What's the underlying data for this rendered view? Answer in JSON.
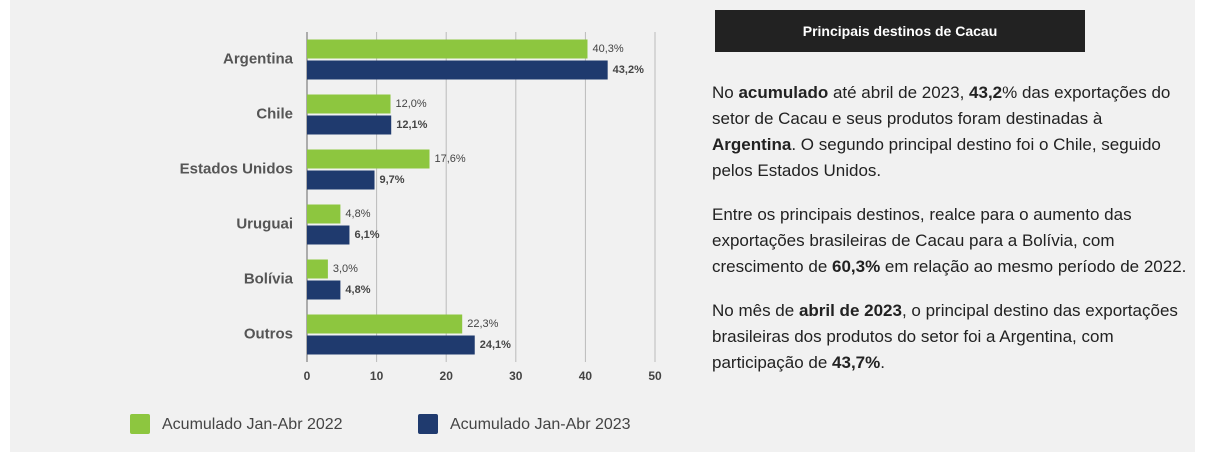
{
  "chart_data": {
    "type": "barh",
    "categories": [
      "Argentina",
      "Chile",
      "Estados Unidos",
      "Uruguai",
      "Bolívia",
      "Outros"
    ],
    "series": [
      {
        "name": "Acumulado Jan-Abr 2022",
        "color": "#8dc63f",
        "values": [
          40.3,
          12.0,
          17.6,
          4.8,
          3.0,
          22.3
        ],
        "value_labels": [
          "40,3%",
          "12,0%",
          "17,6%",
          "4,8%",
          "3,0%",
          "22,3%"
        ]
      },
      {
        "name": "Acumulado Jan-Abr 2023",
        "color": "#1f3a6e",
        "values": [
          43.2,
          12.1,
          9.7,
          6.1,
          4.8,
          24.1
        ],
        "value_labels": [
          "43,2%",
          "12,1%",
          "9,7%",
          "6,1%",
          "4,8%",
          "24,1%"
        ]
      }
    ],
    "xlim": [
      0,
      50
    ],
    "xticks": [
      0,
      10,
      20,
      30,
      40,
      50
    ],
    "grid": true,
    "legend": "bottom"
  },
  "panel": {
    "title": "Principais destinos de Cacau",
    "paragraphs": [
      [
        {
          "text": "No "
        },
        {
          "text": "acumulado",
          "bold": true
        },
        {
          "text": " até abril de 2023, "
        },
        {
          "text": "43,2",
          "bold": true
        },
        {
          "text": "% das exportações do setor de Cacau e seus produtos foram destinadas à "
        },
        {
          "text": "Argentina",
          "bold": true
        },
        {
          "text": ". O segundo principal destino foi o Chile, seguido pelos Estados Unidos."
        }
      ],
      [
        {
          "text": "Entre os principais destinos, realce para o aumento das exportações brasileiras de Cacau para a Bolívia, com crescimento de "
        },
        {
          "text": "60,3%",
          "bold": true
        },
        {
          "text": " em relação ao mesmo período de 2022."
        }
      ],
      [
        {
          "text": "No mês de "
        },
        {
          "text": "abril de 2023",
          "bold": true
        },
        {
          "text": ", o principal destino das exportações brasileiras dos produtos do setor foi a Argentina, com participação de "
        },
        {
          "text": "43,7%",
          "bold": true
        },
        {
          "text": "."
        }
      ]
    ]
  }
}
